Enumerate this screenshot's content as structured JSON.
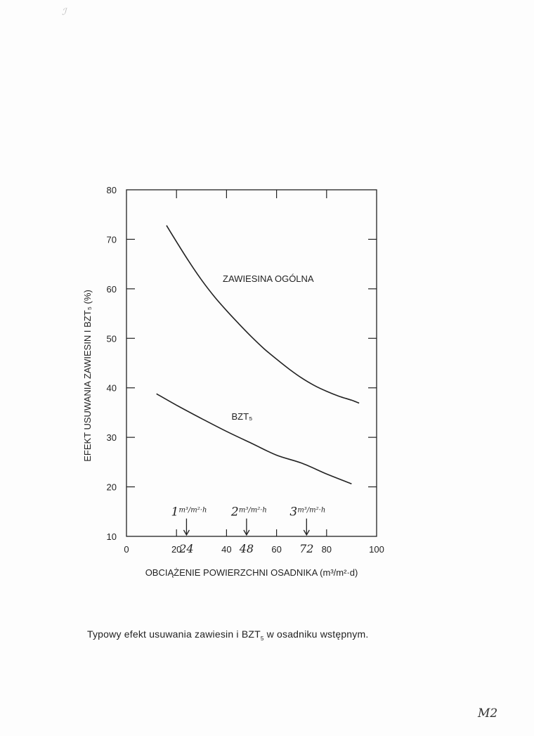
{
  "chart_data": {
    "type": "line",
    "xlabel": "OBCIĄŻENIE POWIERZCHNI OSADNIKA (m³/m²·d)",
    "ylabel": "EFEKT USUWANIA ZAWIESIN I BZT₅ (%)",
    "xlim": [
      0,
      100
    ],
    "ylim": [
      10,
      80
    ],
    "xticks": [
      0,
      20,
      40,
      60,
      80,
      100
    ],
    "yticks": [
      10,
      20,
      30,
      40,
      50,
      60,
      70,
      80
    ],
    "grid": false,
    "series": [
      {
        "name": "ZAWIESINA OGÓLNA",
        "x": [
          16,
          20,
          25,
          30,
          35,
          40,
          45,
          50,
          55,
          60,
          65,
          70,
          75,
          80,
          85,
          90,
          93
        ],
        "y": [
          72.8,
          69.5,
          65.5,
          61.8,
          58.5,
          55.6,
          52.9,
          50.3,
          47.9,
          45.8,
          43.8,
          42.0,
          40.5,
          39.3,
          38.3,
          37.5,
          36.9
        ]
      },
      {
        "name": "BZT₅",
        "x": [
          12,
          20,
          30,
          40,
          50,
          60,
          70,
          80,
          90
        ],
        "y": [
          38.8,
          36.5,
          33.8,
          31.2,
          28.8,
          26.4,
          24.8,
          22.6,
          20.6
        ]
      }
    ],
    "annotations": [
      {
        "label_num": "1",
        "label_unit": "m³/m²·h",
        "x_mark": "24"
      },
      {
        "label_num": "2",
        "label_unit": "m³/m²·h",
        "x_mark": "48"
      },
      {
        "label_num": "3",
        "label_unit": "m³/m²·h",
        "x_mark": "72"
      }
    ]
  },
  "caption": {
    "before": "Typowy efekt usuwania zawiesin i BZT",
    "sub": "5",
    "after": " w osadniku wstępnym."
  },
  "corner_mark": "M2"
}
